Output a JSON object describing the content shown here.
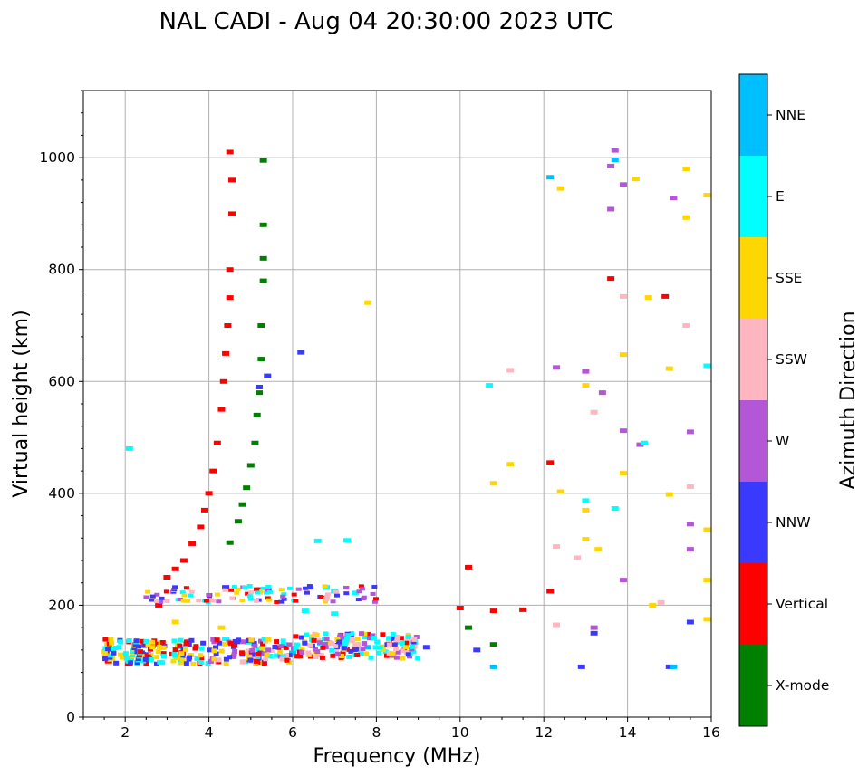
{
  "chart_data": {
    "type": "scatter",
    "title": "NAL CADI - Aug 04 20:30:00 2023 UTC",
    "xlabel": "Frequency (MHz)",
    "ylabel": "Virtual height (km)",
    "xlim": [
      1,
      16
    ],
    "ylim": [
      0,
      1120
    ],
    "xticks": [
      2,
      4,
      6,
      8,
      10,
      12,
      14,
      16
    ],
    "yticks": [
      0,
      200,
      400,
      600,
      800,
      1000
    ],
    "grid": true,
    "colorbar": {
      "title": "Azimuth Direction",
      "categories": [
        {
          "name": "X-mode",
          "color": "#008000"
        },
        {
          "name": "Vertical",
          "color": "#ff0000"
        },
        {
          "name": "NNW",
          "color": "#3a3aff"
        },
        {
          "name": "W",
          "color": "#b457d6"
        },
        {
          "name": "SSW",
          "color": "#ffb6c1"
        },
        {
          "name": "SSE",
          "color": "#ffd700"
        },
        {
          "name": "E",
          "color": "#00ffff"
        },
        {
          "name": "NNE",
          "color": "#00bfff"
        }
      ]
    },
    "series": [
      {
        "name": "Vertical",
        "points": [
          [
            1.6,
            100
          ],
          [
            2.1,
            105
          ],
          [
            2.5,
            110
          ],
          [
            2.8,
            200
          ],
          [
            3.0,
            250
          ],
          [
            3.2,
            265
          ],
          [
            3.4,
            280
          ],
          [
            3.6,
            310
          ],
          [
            3.8,
            340
          ],
          [
            3.9,
            370
          ],
          [
            4.0,
            400
          ],
          [
            4.1,
            440
          ],
          [
            4.2,
            490
          ],
          [
            4.3,
            550
          ],
          [
            4.35,
            600
          ],
          [
            4.4,
            650
          ],
          [
            4.45,
            700
          ],
          [
            4.5,
            750
          ],
          [
            4.5,
            800
          ],
          [
            4.55,
            900
          ],
          [
            4.55,
            960
          ],
          [
            4.5,
            1010
          ],
          [
            12.15,
            225
          ],
          [
            12.15,
            455
          ],
          [
            13.6,
            784
          ],
          [
            14.9,
            752
          ],
          [
            10.2,
            268
          ],
          [
            10.0,
            195
          ],
          [
            10.8,
            190
          ],
          [
            11.5,
            192
          ]
        ]
      },
      {
        "name": "X-mode",
        "points": [
          [
            4.5,
            312
          ],
          [
            4.7,
            350
          ],
          [
            4.8,
            380
          ],
          [
            4.9,
            410
          ],
          [
            5.0,
            450
          ],
          [
            5.1,
            490
          ],
          [
            5.15,
            540
          ],
          [
            5.2,
            580
          ],
          [
            5.25,
            640
          ],
          [
            5.25,
            700
          ],
          [
            5.3,
            780
          ],
          [
            5.3,
            820
          ],
          [
            5.3,
            880
          ],
          [
            5.3,
            995
          ],
          [
            10.2,
            160
          ],
          [
            10.8,
            130
          ]
        ]
      },
      {
        "name": "NNW",
        "points": [
          [
            4.4,
            232
          ],
          [
            5.2,
            590
          ],
          [
            5.4,
            610
          ],
          [
            6.2,
            652
          ],
          [
            8.4,
            140
          ],
          [
            9.2,
            125
          ],
          [
            10.4,
            120
          ],
          [
            12.9,
            90
          ],
          [
            13.2,
            150
          ],
          [
            15.0,
            90
          ],
          [
            15.5,
            170
          ]
        ]
      },
      {
        "name": "W",
        "points": [
          [
            13.7,
            1013
          ],
          [
            13.6,
            985
          ],
          [
            13.6,
            908
          ],
          [
            13.9,
            952
          ],
          [
            15.1,
            928
          ],
          [
            15.5,
            510
          ],
          [
            15.5,
            345
          ],
          [
            15.5,
            300
          ],
          [
            12.3,
            625
          ],
          [
            13.0,
            618
          ],
          [
            13.4,
            580
          ],
          [
            13.9,
            512
          ],
          [
            14.3,
            487
          ],
          [
            13.9,
            245
          ],
          [
            13.2,
            160
          ]
        ]
      },
      {
        "name": "SSW",
        "points": [
          [
            11.2,
            620
          ],
          [
            13.2,
            545
          ],
          [
            13.9,
            752
          ],
          [
            15.4,
            700
          ],
          [
            15.5,
            412
          ],
          [
            12.3,
            305
          ],
          [
            12.8,
            285
          ],
          [
            14.8,
            205
          ],
          [
            12.3,
            165
          ]
        ]
      },
      {
        "name": "SSE",
        "points": [
          [
            7.8,
            741
          ],
          [
            12.4,
            945
          ],
          [
            14.2,
            962
          ],
          [
            15.4,
            980
          ],
          [
            15.9,
            933
          ],
          [
            15.4,
            893
          ],
          [
            14.5,
            750
          ],
          [
            15.0,
            623
          ],
          [
            13.0,
            593
          ],
          [
            13.9,
            648
          ],
          [
            13.9,
            436
          ],
          [
            10.8,
            418
          ],
          [
            11.2,
            452
          ],
          [
            12.4,
            403
          ],
          [
            15.0,
            398
          ],
          [
            13.0,
            370
          ],
          [
            13.0,
            318
          ],
          [
            13.3,
            300
          ],
          [
            15.9,
            335
          ],
          [
            15.9,
            245
          ],
          [
            14.6,
            200
          ],
          [
            15.9,
            175
          ],
          [
            3.2,
            170
          ],
          [
            4.3,
            160
          ]
        ]
      },
      {
        "name": "E",
        "points": [
          [
            2.1,
            480
          ],
          [
            10.7,
            593
          ],
          [
            13.0,
            387
          ],
          [
            13.7,
            373
          ],
          [
            15.9,
            628
          ],
          [
            14.4,
            490
          ],
          [
            6.6,
            315
          ],
          [
            7.3,
            316
          ],
          [
            6.8,
            232
          ],
          [
            7.0,
            225
          ],
          [
            7.5,
            222
          ],
          [
            6.3,
            190
          ],
          [
            7.0,
            185
          ],
          [
            4.4,
            140
          ],
          [
            5.8,
            130
          ]
        ]
      },
      {
        "name": "NNE",
        "points": [
          [
            12.15,
            965
          ],
          [
            13.7,
            996
          ],
          [
            10.8,
            90
          ],
          [
            15.1,
            90
          ],
          [
            6.0,
            115
          ],
          [
            7.8,
            125
          ]
        ]
      }
    ]
  }
}
